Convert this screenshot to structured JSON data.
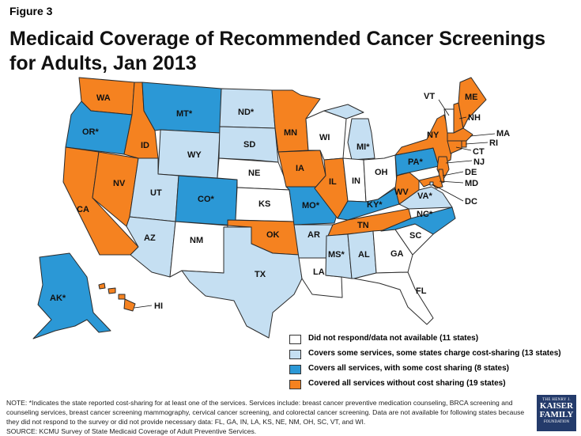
{
  "figure_label": "Figure 3",
  "title": "Medicaid Coverage of Recommended Cancer Screenings for Adults, Jan 2013",
  "colors": {
    "none": "#ffffff",
    "some": "#c5dff2",
    "cost": "#2b98d6",
    "full": "#f58220",
    "border": "#2b2b2b"
  },
  "states": {
    "WA": {
      "label": "WA",
      "cat": "full"
    },
    "OR": {
      "label": "OR*",
      "cat": "cost"
    },
    "CA": {
      "label": "CA",
      "cat": "full"
    },
    "NV": {
      "label": "NV",
      "cat": "full"
    },
    "ID": {
      "label": "ID",
      "cat": "full"
    },
    "MT": {
      "label": "MT*",
      "cat": "cost"
    },
    "WY": {
      "label": "WY",
      "cat": "some"
    },
    "UT": {
      "label": "UT",
      "cat": "some"
    },
    "AZ": {
      "label": "AZ",
      "cat": "some"
    },
    "CO": {
      "label": "CO*",
      "cat": "cost"
    },
    "NM": {
      "label": "NM",
      "cat": "none"
    },
    "ND": {
      "label": "ND*",
      "cat": "some"
    },
    "SD": {
      "label": "SD",
      "cat": "some"
    },
    "NE": {
      "label": "NE",
      "cat": "none"
    },
    "KS": {
      "label": "KS",
      "cat": "none"
    },
    "OK": {
      "label": "OK",
      "cat": "full"
    },
    "TX": {
      "label": "TX",
      "cat": "some"
    },
    "MN": {
      "label": "MN",
      "cat": "full"
    },
    "IA": {
      "label": "IA",
      "cat": "full"
    },
    "MO": {
      "label": "MO*",
      "cat": "cost"
    },
    "AR": {
      "label": "AR",
      "cat": "some"
    },
    "LA": {
      "label": "LA",
      "cat": "none"
    },
    "WI": {
      "label": "WI",
      "cat": "none"
    },
    "IL": {
      "label": "IL",
      "cat": "full"
    },
    "MI": {
      "label": "MI*",
      "cat": "some"
    },
    "IN": {
      "label": "IN",
      "cat": "none"
    },
    "OH": {
      "label": "OH",
      "cat": "none"
    },
    "KY": {
      "label": "KY*",
      "cat": "cost"
    },
    "TN": {
      "label": "TN",
      "cat": "full"
    },
    "MS": {
      "label": "MS*",
      "cat": "some"
    },
    "AL": {
      "label": "AL",
      "cat": "some"
    },
    "GA": {
      "label": "GA",
      "cat": "none"
    },
    "FL": {
      "label": "FL",
      "cat": "none"
    },
    "SC": {
      "label": "SC",
      "cat": "none"
    },
    "NC": {
      "label": "NC*",
      "cat": "cost"
    },
    "VA": {
      "label": "VA*",
      "cat": "some"
    },
    "WV": {
      "label": "WV",
      "cat": "full"
    },
    "PA": {
      "label": "PA*",
      "cat": "cost"
    },
    "NY": {
      "label": "NY",
      "cat": "full"
    },
    "VT": {
      "label": "VT",
      "cat": "none"
    },
    "NH": {
      "label": "NH",
      "cat": "full"
    },
    "ME": {
      "label": "ME",
      "cat": "full"
    },
    "MA": {
      "label": "MA",
      "cat": "full"
    },
    "RI": {
      "label": "RI",
      "cat": "full"
    },
    "CT": {
      "label": "CT",
      "cat": "full"
    },
    "NJ": {
      "label": "NJ",
      "cat": "full"
    },
    "DE": {
      "label": "DE",
      "cat": "full"
    },
    "MD": {
      "label": "MD",
      "cat": "full"
    },
    "DC": {
      "label": "DC",
      "cat": "some"
    },
    "AK": {
      "label": "AK*",
      "cat": "cost"
    },
    "HI": {
      "label": "HI",
      "cat": "full"
    }
  },
  "legend": [
    {
      "cat": "none",
      "label": "Did not respond/data not available (11 states)"
    },
    {
      "cat": "some",
      "label": "Covers some services, some states charge cost-sharing (13 states)"
    },
    {
      "cat": "cost",
      "label": "Covers all services, with some cost sharing (8 states)"
    },
    {
      "cat": "full",
      "label": "Covered all services without cost sharing (19 states)"
    }
  ],
  "note": "NOTE: *Indicates the state reported cost-sharing for at least one of the services. Services include: breast cancer preventive medication counseling, BRCA screening and counseling services, breast cancer screening mammography, cervical cancer screening, and colorectal cancer screening. Data are not available for following states because they did not respond to the survey or did not provide necessary data: FL, GA, IN, LA, KS, NE, NM, OH, SC, VT, and WI.",
  "source": "SOURCE:  KCMU Survey of State Medicaid Coverage of Adult Preventive Services.",
  "logo": {
    "line1": "THE HENRY J.",
    "line2": "KAISER",
    "line3": "FAMILY",
    "line4": "FOUNDATION"
  }
}
